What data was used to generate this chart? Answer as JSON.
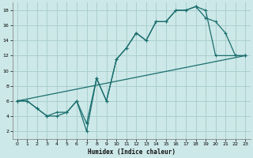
{
  "xlabel": "Humidex (Indice chaleur)",
  "background_color": "#cde8e8",
  "grid_color": "#aacfcf",
  "line_color": "#1a6e6e",
  "xlim": [
    -0.5,
    23.5
  ],
  "ylim": [
    1,
    19
  ],
  "xticks": [
    0,
    1,
    2,
    3,
    4,
    5,
    6,
    7,
    8,
    9,
    10,
    11,
    12,
    13,
    14,
    15,
    16,
    17,
    18,
    19,
    20,
    21,
    22,
    23
  ],
  "yticks": [
    2,
    4,
    6,
    8,
    10,
    12,
    14,
    16,
    18
  ],
  "line1_x": [
    0,
    1,
    2,
    3,
    4,
    5,
    6,
    7,
    8,
    9,
    10,
    11,
    12,
    13,
    14,
    15,
    16,
    17,
    18,
    19,
    20,
    22,
    23
  ],
  "line1_y": [
    6,
    6,
    5,
    4,
    4.5,
    4.5,
    6,
    2,
    9,
    6,
    11.5,
    13,
    15,
    14,
    16.5,
    16.5,
    18,
    18,
    18.5,
    18,
    12,
    12,
    12
  ],
  "line2_x": [
    0,
    1,
    2,
    3,
    4,
    5,
    6,
    7,
    8,
    9,
    10,
    11,
    12,
    13,
    14,
    15,
    16,
    17,
    18,
    19,
    20,
    21,
    22,
    23
  ],
  "line2_y": [
    6,
    6,
    5,
    4,
    4,
    4.5,
    6,
    3,
    9,
    6,
    11.5,
    13,
    15,
    14,
    16.5,
    16.5,
    18,
    18,
    18.5,
    17,
    16.5,
    15,
    12,
    12
  ],
  "line3_x": [
    0,
    23
  ],
  "line3_y": [
    6,
    12
  ]
}
